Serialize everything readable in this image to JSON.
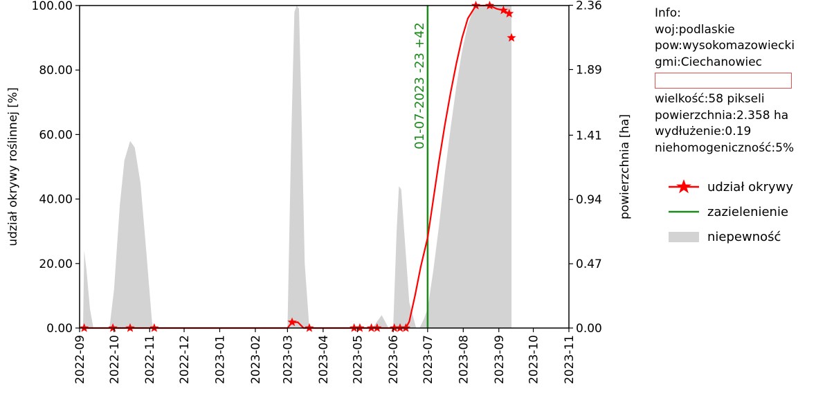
{
  "chart_data": {
    "type": "line",
    "x_ticks": [
      "2022-09",
      "2022-10",
      "2022-11",
      "2022-12",
      "2023-01",
      "2023-02",
      "2023-03",
      "2023-04",
      "2023-05",
      "2023-06",
      "2023-07",
      "2023-08",
      "2023-09",
      "2023-10",
      "2023-11"
    ],
    "xlim": [
      "2022-09-01",
      "2023-11-01"
    ],
    "ylabel": "udział okrywy roślinnej [%]",
    "ylim": [
      0,
      100
    ],
    "y_ticks": [
      "0.00",
      "20.00",
      "40.00",
      "60.00",
      "80.00",
      "100.00"
    ],
    "y2label": "powierzchnia [ha]",
    "y2lim": [
      0,
      2.358
    ],
    "y2_ticks": [
      "0.00",
      "0.47",
      "0.94",
      "1.41",
      "1.89",
      "2.36"
    ],
    "vline": {
      "date": "2023-07-01",
      "label": "01-07-2023 -23 +42"
    },
    "series": [
      {
        "name": "udział okrywy",
        "color": "#ff0000",
        "line_points": [
          {
            "x": "2022-09-05",
            "y": 0
          },
          {
            "x": "2022-09-30",
            "y": 0
          },
          {
            "x": "2022-10-15",
            "y": 0
          },
          {
            "x": "2022-11-05",
            "y": 0
          },
          {
            "x": "2023-03-01",
            "y": 0
          },
          {
            "x": "2023-03-05",
            "y": 1.8
          },
          {
            "x": "2023-03-10",
            "y": 1.8
          },
          {
            "x": "2023-03-15",
            "y": 0
          },
          {
            "x": "2023-03-20",
            "y": 0
          },
          {
            "x": "2023-04-28",
            "y": 0
          },
          {
            "x": "2023-05-03",
            "y": 0
          },
          {
            "x": "2023-05-13",
            "y": 0
          },
          {
            "x": "2023-05-18",
            "y": 0
          },
          {
            "x": "2023-06-02",
            "y": 0
          },
          {
            "x": "2023-06-07",
            "y": 0
          },
          {
            "x": "2023-06-12",
            "y": 0
          },
          {
            "x": "2023-06-15",
            "y": 2
          },
          {
            "x": "2023-06-20",
            "y": 10
          },
          {
            "x": "2023-06-25",
            "y": 19
          },
          {
            "x": "2023-07-01",
            "y": 28
          },
          {
            "x": "2023-07-06",
            "y": 40
          },
          {
            "x": "2023-07-11",
            "y": 52
          },
          {
            "x": "2023-07-16",
            "y": 63
          },
          {
            "x": "2023-07-21",
            "y": 73
          },
          {
            "x": "2023-07-26",
            "y": 82
          },
          {
            "x": "2023-07-31",
            "y": 90
          },
          {
            "x": "2023-08-05",
            "y": 96
          },
          {
            "x": "2023-08-12",
            "y": 100
          },
          {
            "x": "2023-08-17",
            "y": 100
          },
          {
            "x": "2023-08-24",
            "y": 100
          },
          {
            "x": "2023-08-30",
            "y": 99
          },
          {
            "x": "2023-09-05",
            "y": 98.5
          },
          {
            "x": "2023-09-10",
            "y": 97.5
          }
        ],
        "markers": [
          {
            "x": "2022-09-05",
            "y": 0
          },
          {
            "x": "2022-09-30",
            "y": 0
          },
          {
            "x": "2022-10-15",
            "y": 0
          },
          {
            "x": "2022-11-05",
            "y": 0
          },
          {
            "x": "2023-03-05",
            "y": 1.8
          },
          {
            "x": "2023-03-20",
            "y": 0
          },
          {
            "x": "2023-04-28",
            "y": 0
          },
          {
            "x": "2023-05-03",
            "y": 0
          },
          {
            "x": "2023-05-13",
            "y": 0
          },
          {
            "x": "2023-05-18",
            "y": 0
          },
          {
            "x": "2023-06-02",
            "y": 0
          },
          {
            "x": "2023-06-07",
            "y": 0
          },
          {
            "x": "2023-06-12",
            "y": 0
          },
          {
            "x": "2023-08-12",
            "y": 100
          },
          {
            "x": "2023-08-24",
            "y": 100
          },
          {
            "x": "2023-09-05",
            "y": 98.5
          },
          {
            "x": "2023-09-10",
            "y": 97.5
          },
          {
            "x": "2023-09-12",
            "y": 90
          }
        ]
      },
      {
        "name": "zazielenienie",
        "color": "#1a8a1a"
      },
      {
        "name": "niepewność",
        "color": "#d3d3d3",
        "regions": [
          [
            {
              "x": "2022-09-04",
              "y": 0
            },
            {
              "x": "2022-09-05",
              "y": 24
            },
            {
              "x": "2022-09-07",
              "y": 18
            },
            {
              "x": "2022-09-10",
              "y": 6
            },
            {
              "x": "2022-09-13",
              "y": 0
            }
          ],
          [
            {
              "x": "2022-09-27",
              "y": 0
            },
            {
              "x": "2022-10-01",
              "y": 12
            },
            {
              "x": "2022-10-06",
              "y": 38
            },
            {
              "x": "2022-10-10",
              "y": 52
            },
            {
              "x": "2022-10-15",
              "y": 58
            },
            {
              "x": "2022-10-19",
              "y": 56
            },
            {
              "x": "2022-10-24",
              "y": 45
            },
            {
              "x": "2022-10-29",
              "y": 24
            },
            {
              "x": "2022-11-03",
              "y": 2
            },
            {
              "x": "2022-11-04",
              "y": 0
            }
          ],
          [
            {
              "x": "2023-03-01",
              "y": 0
            },
            {
              "x": "2023-03-04",
              "y": 55
            },
            {
              "x": "2023-03-07",
              "y": 98
            },
            {
              "x": "2023-03-09",
              "y": 100
            },
            {
              "x": "2023-03-11",
              "y": 99
            },
            {
              "x": "2023-03-13",
              "y": 70
            },
            {
              "x": "2023-03-16",
              "y": 20
            },
            {
              "x": "2023-03-20",
              "y": 0
            }
          ],
          [
            {
              "x": "2023-05-14",
              "y": 0
            },
            {
              "x": "2023-05-18",
              "y": 2
            },
            {
              "x": "2023-05-22",
              "y": 4
            },
            {
              "x": "2023-05-25",
              "y": 2
            },
            {
              "x": "2023-05-28",
              "y": 0
            }
          ],
          [
            {
              "x": "2023-06-01",
              "y": 0
            },
            {
              "x": "2023-06-04",
              "y": 30
            },
            {
              "x": "2023-06-06",
              "y": 44
            },
            {
              "x": "2023-06-08",
              "y": 43
            },
            {
              "x": "2023-06-11",
              "y": 28
            },
            {
              "x": "2023-06-15",
              "y": 8
            },
            {
              "x": "2023-06-21",
              "y": 0
            }
          ],
          [
            {
              "x": "2023-06-24",
              "y": 0
            },
            {
              "x": "2023-06-28",
              "y": 3
            },
            {
              "x": "2023-07-01",
              "y": 6
            },
            {
              "x": "2023-07-06",
              "y": 18
            },
            {
              "x": "2023-07-11",
              "y": 32
            },
            {
              "x": "2023-07-16",
              "y": 48
            },
            {
              "x": "2023-07-21",
              "y": 62
            },
            {
              "x": "2023-07-26",
              "y": 75
            },
            {
              "x": "2023-07-31",
              "y": 86
            },
            {
              "x": "2023-08-05",
              "y": 94
            },
            {
              "x": "2023-08-10",
              "y": 99
            },
            {
              "x": "2023-08-15",
              "y": 100
            },
            {
              "x": "2023-08-31",
              "y": 100
            },
            {
              "x": "2023-09-05",
              "y": 100
            },
            {
              "x": "2023-09-10",
              "y": 100
            },
            {
              "x": "2023-09-12",
              "y": 100
            },
            {
              "x": "2023-09-12",
              "y": 0
            }
          ]
        ]
      }
    ],
    "legend_position": "right"
  },
  "info": {
    "title": "Info:",
    "woj": "woj:podlaskie",
    "pow": "pow:wysokomazowiecki",
    "gmi": "gmi:Ciechanowiec",
    "wielkosc": "wielkość:58 pikseli",
    "powierzchnia": "powierzchnia:2.358 ha",
    "wydluzenie": "wydłużenie:0.19",
    "niehomogenicznosc": "niehomogeniczność:5%"
  },
  "legend": {
    "item1": "udział okrywy",
    "item2": "zazielenienie",
    "item3": "niepewność"
  }
}
